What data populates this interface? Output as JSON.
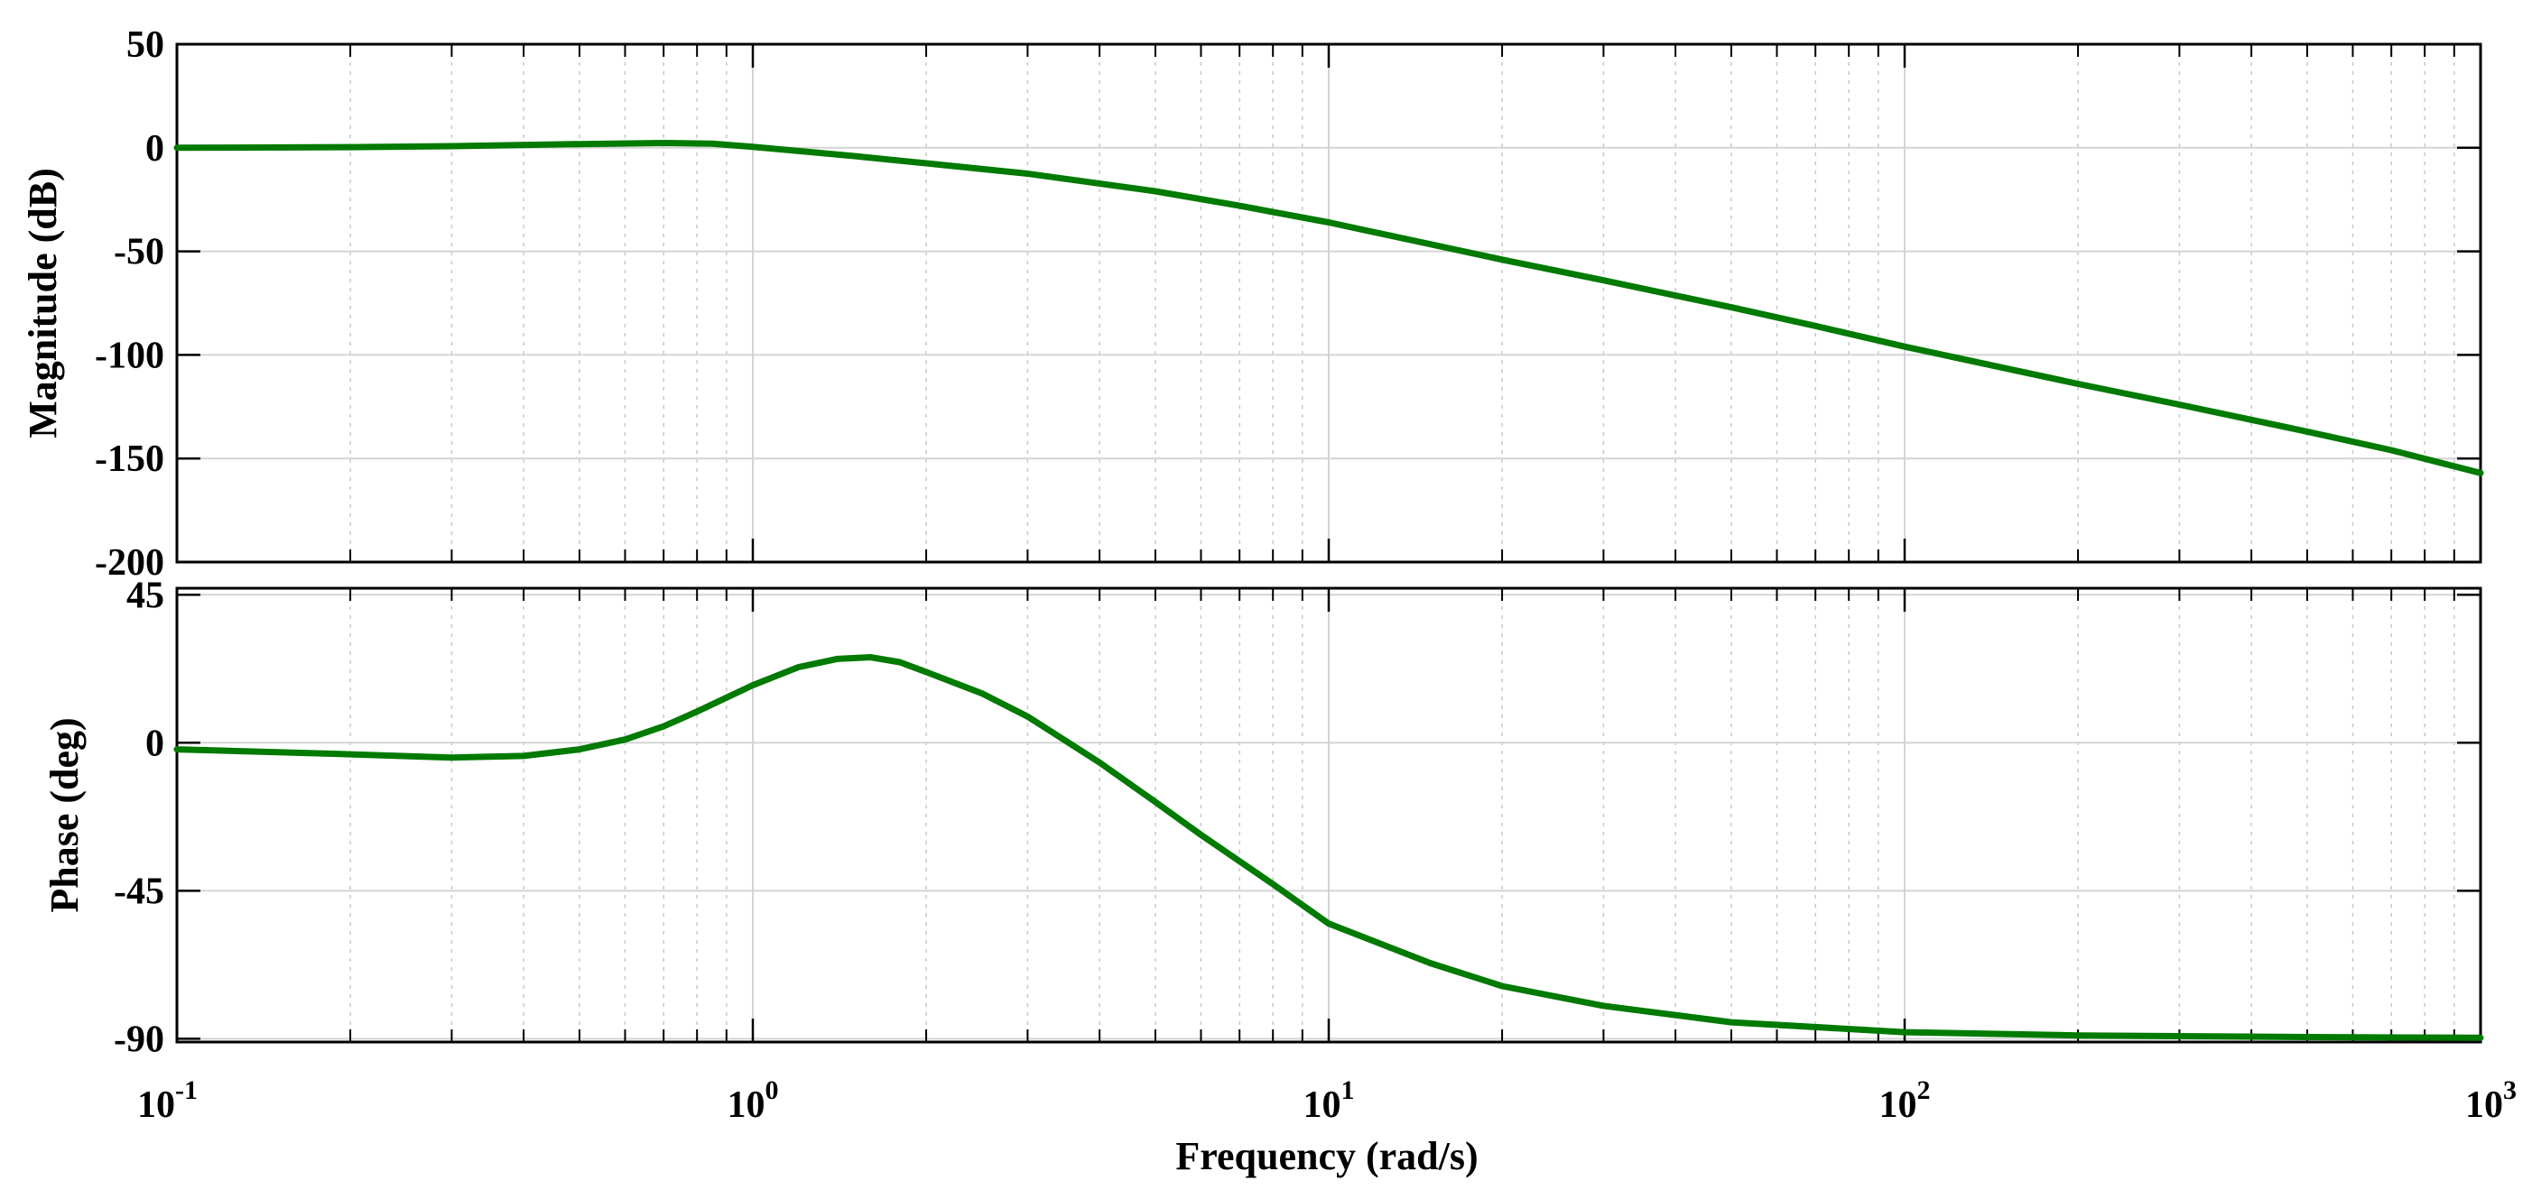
{
  "chart_data": {
    "type": "line",
    "xlabel": "Frequency  (rad/s)",
    "x_scale": "log",
    "xlim": [
      0.1,
      1000
    ],
    "x_ticks": [
      {
        "value": 0.1,
        "base": "10",
        "exp": "-1"
      },
      {
        "value": 1,
        "base": "10",
        "exp": "0"
      },
      {
        "value": 10,
        "base": "10",
        "exp": "1"
      },
      {
        "value": 100,
        "base": "10",
        "exp": "2"
      },
      {
        "value": 1000,
        "base": "10",
        "exp": "3"
      }
    ],
    "grid": true,
    "line_color": "#007a00",
    "panels": [
      {
        "id": "magnitude",
        "ylabel": "Magnitude (dB)",
        "ylim": [
          -200,
          50
        ],
        "y_ticks": [
          50,
          0,
          -50,
          -100,
          -150,
          -200
        ],
        "y_tick_labels": [
          "50",
          "0",
          "-50",
          "-100",
          "-150",
          "-200"
        ],
        "series": [
          {
            "x": [
              0.1,
              0.2,
              0.3,
              0.5,
              0.7,
              0.85,
              1,
              1.5,
              2,
              3,
              5,
              7,
              10,
              20,
              30,
              50,
              70,
              100,
              200,
              300,
              500,
              700,
              1000
            ],
            "y": [
              0,
              0.3,
              0.8,
              1.8,
              2.3,
              2.0,
              0.5,
              -4,
              -7.5,
              -12.5,
              -21,
              -28,
              -36,
              -54,
              -64,
              -77,
              -86,
              -96,
              -114,
              -124,
              -137,
              -146,
              -157
            ]
          }
        ]
      },
      {
        "id": "phase",
        "ylabel": "Phase (deg)",
        "ylim": [
          -91,
          47
        ],
        "y_ticks": [
          45,
          0,
          -45,
          -90
        ],
        "y_tick_labels": [
          "45",
          "0",
          "-45",
          "-90"
        ],
        "series": [
          {
            "x": [
              0.1,
              0.2,
              0.3,
              0.4,
              0.5,
              0.6,
              0.7,
              0.8,
              1,
              1.2,
              1.4,
              1.6,
              1.8,
              2,
              2.5,
              3,
              4,
              5,
              6,
              8,
              10,
              15,
              20,
              30,
              50,
              100,
              200,
              500,
              1000
            ],
            "y": [
              -2,
              -3.5,
              -4.5,
              -4,
              -2,
              1,
              5,
              9.5,
              17.5,
              23,
              25.5,
              26,
              24.5,
              21.5,
              15,
              8,
              -6,
              -18,
              -28,
              -43,
              -55,
              -67,
              -74,
              -80,
              -85,
              -88,
              -89,
              -89.5,
              -89.7
            ]
          }
        ]
      }
    ]
  }
}
